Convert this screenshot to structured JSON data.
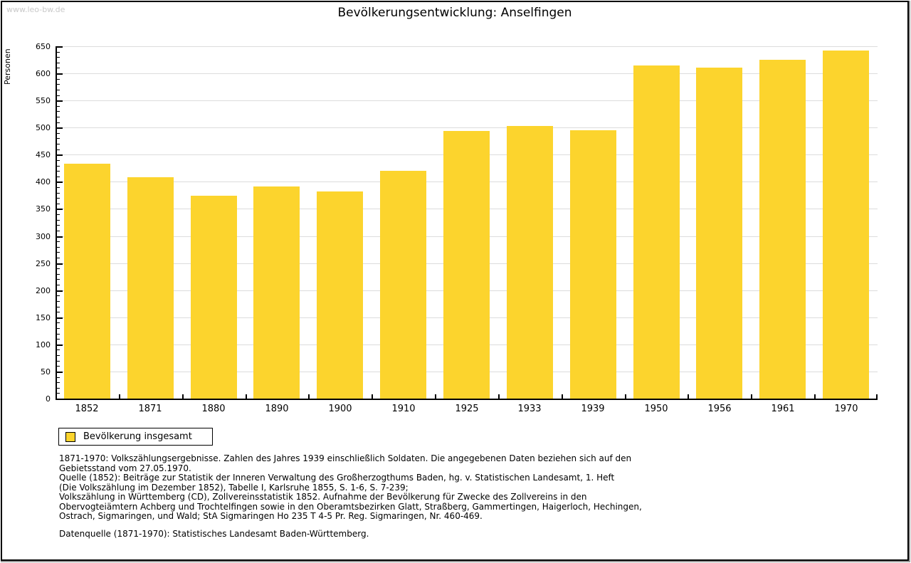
{
  "watermark": "www.leo-bw.de",
  "title": "Bevölkerungsentwicklung: Anselfingen",
  "chart_data": {
    "type": "bar",
    "title": "Bevölkerungsentwicklung: Anselfingen",
    "xlabel": "",
    "ylabel": "Personen",
    "categories": [
      "1852",
      "1871",
      "1880",
      "1890",
      "1900",
      "1910",
      "1925",
      "1933",
      "1939",
      "1950",
      "1956",
      "1961",
      "1970"
    ],
    "values": [
      433,
      408,
      374,
      391,
      382,
      420,
      494,
      503,
      495,
      614,
      610,
      625,
      642
    ],
    "ylim": [
      0,
      650
    ],
    "ytick_major_step": 50,
    "ytick_minor_step": 10,
    "grid": true,
    "bar_color": "#FCD42D",
    "gridline_color": "#DCDCDC",
    "legend_entries": [
      "Bevölkerung insgesamt"
    ],
    "legend_position": "bottom-left"
  },
  "legend": {
    "label": "Bevölkerung insgesamt",
    "swatch_color": "#FCD42D"
  },
  "footnotes": [
    "1871-1970: Volkszählungsergebnisse. Zahlen des Jahres 1939 einschließlich Soldaten. Die angegebenen Daten beziehen sich auf den",
    "Gebietsstand vom 27.05.1970.",
    "Quelle (1852): Beiträge zur Statistik der Inneren Verwaltung des Großherzogthums Baden, hg. v. Statistischen Landesamt, 1. Heft",
    "(Die Volkszählung im Dezember 1852), Tabelle I, Karlsruhe 1855, S. 1-6, S. 7-239;",
    "Volkszählung in Württemberg (CD), Zollvereinsstatistik 1852. Aufnahme der Bevölkerung für Zwecke des Zollvereins in den",
    "Obervogteiämtern Achberg und Trochtelfingen sowie in den Oberamtsbezirken Glatt, Straßberg, Gammertingen, Haigerloch, Hechingen,",
    "Ostrach, Sigmaringen, und Wald; StA Sigmaringen Ho 235 T 4-5 Pr. Reg. Sigmaringen, Nr. 460-469."
  ],
  "datasource": "Datenquelle (1871-1970): Statistisches Landesamt Baden-Württemberg."
}
